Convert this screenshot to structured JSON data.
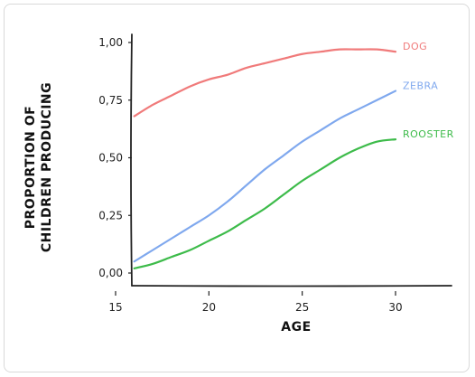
{
  "chart_data": {
    "type": "line",
    "xlabel": "AGE",
    "ylabel": [
      "PROPORTION OF",
      "CHILDREN PRODUCING"
    ],
    "xlim": [
      15,
      33
    ],
    "ylim": [
      0,
      1
    ],
    "x_ticks": [
      15,
      20,
      25,
      30
    ],
    "y_ticks": [
      0,
      0.25,
      0.5,
      0.75,
      1.0
    ],
    "y_tick_labels": [
      "0,00",
      "0,25",
      "0,50",
      "0,75",
      "1,00"
    ],
    "grid": false,
    "legend": "inline-right",
    "series": [
      {
        "name": "DOG",
        "color": "#f07a7a",
        "x": [
          16,
          17,
          18,
          19,
          20,
          21,
          22,
          23,
          24,
          25,
          26,
          27,
          28,
          29,
          30
        ],
        "y": [
          0.68,
          0.73,
          0.77,
          0.81,
          0.84,
          0.86,
          0.89,
          0.91,
          0.93,
          0.95,
          0.96,
          0.97,
          0.97,
          0.97,
          0.96
        ]
      },
      {
        "name": "ZEBRA",
        "color": "#7fa8ee",
        "x": [
          16,
          17,
          18,
          19,
          20,
          21,
          22,
          23,
          24,
          25,
          26,
          27,
          28,
          29,
          30
        ],
        "y": [
          0.05,
          0.1,
          0.15,
          0.2,
          0.25,
          0.31,
          0.38,
          0.45,
          0.51,
          0.57,
          0.62,
          0.67,
          0.71,
          0.75,
          0.79
        ]
      },
      {
        "name": "ROOSTER",
        "color": "#3dbb4a",
        "x": [
          16,
          17,
          18,
          19,
          20,
          21,
          22,
          23,
          24,
          25,
          26,
          27,
          28,
          29,
          30
        ],
        "y": [
          0.02,
          0.04,
          0.07,
          0.1,
          0.14,
          0.18,
          0.23,
          0.28,
          0.34,
          0.4,
          0.45,
          0.5,
          0.54,
          0.57,
          0.58
        ]
      }
    ]
  }
}
